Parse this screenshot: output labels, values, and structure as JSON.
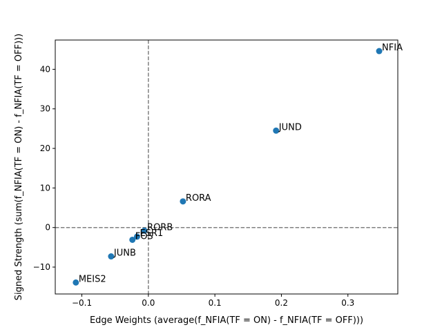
{
  "chart_data": {
    "type": "scatter",
    "title": "",
    "xlabel": "Edge Weights (average(f_NFIA(TF = ON) - f_NFIA(TF = OFF)))",
    "ylabel": "Signed Strength (sum(f_NFIA(TF = ON) - f_NFIA(TF = OFF)))",
    "xlim": [
      -0.14,
      0.375
    ],
    "ylim": [
      -16.8,
      47.4
    ],
    "xticks": [
      -0.1,
      0.0,
      0.1,
      0.2,
      0.3
    ],
    "xtick_labels": [
      "−0.1",
      "0.0",
      "0.1",
      "0.2",
      "0.3"
    ],
    "yticks": [
      -10,
      0,
      10,
      20,
      30,
      40
    ],
    "ytick_labels": [
      "−10",
      "0",
      "10",
      "20",
      "30",
      "40"
    ],
    "reference_lines": [
      {
        "orientation": "vertical",
        "x": 0,
        "style": "dashed",
        "color": "#808080"
      },
      {
        "orientation": "horizontal",
        "y": 0,
        "style": "dashed",
        "color": "#808080"
      }
    ],
    "grid": false,
    "marker_color": "#1f77b4",
    "points": [
      {
        "label": "NFIA",
        "x": 0.347,
        "y": 44.6
      },
      {
        "label": "JUND",
        "x": 0.192,
        "y": 24.5
      },
      {
        "label": "RORA",
        "x": 0.052,
        "y": 6.6
      },
      {
        "label": "RORB",
        "x": -0.006,
        "y": -0.8
      },
      {
        "label": "ESR1",
        "x": -0.017,
        "y": -2.3
      },
      {
        "label": "FOS",
        "x": -0.024,
        "y": -3.1
      },
      {
        "label": "JUNB",
        "x": -0.056,
        "y": -7.3
      },
      {
        "label": "MEIS2",
        "x": -0.109,
        "y": -13.9
      }
    ]
  }
}
